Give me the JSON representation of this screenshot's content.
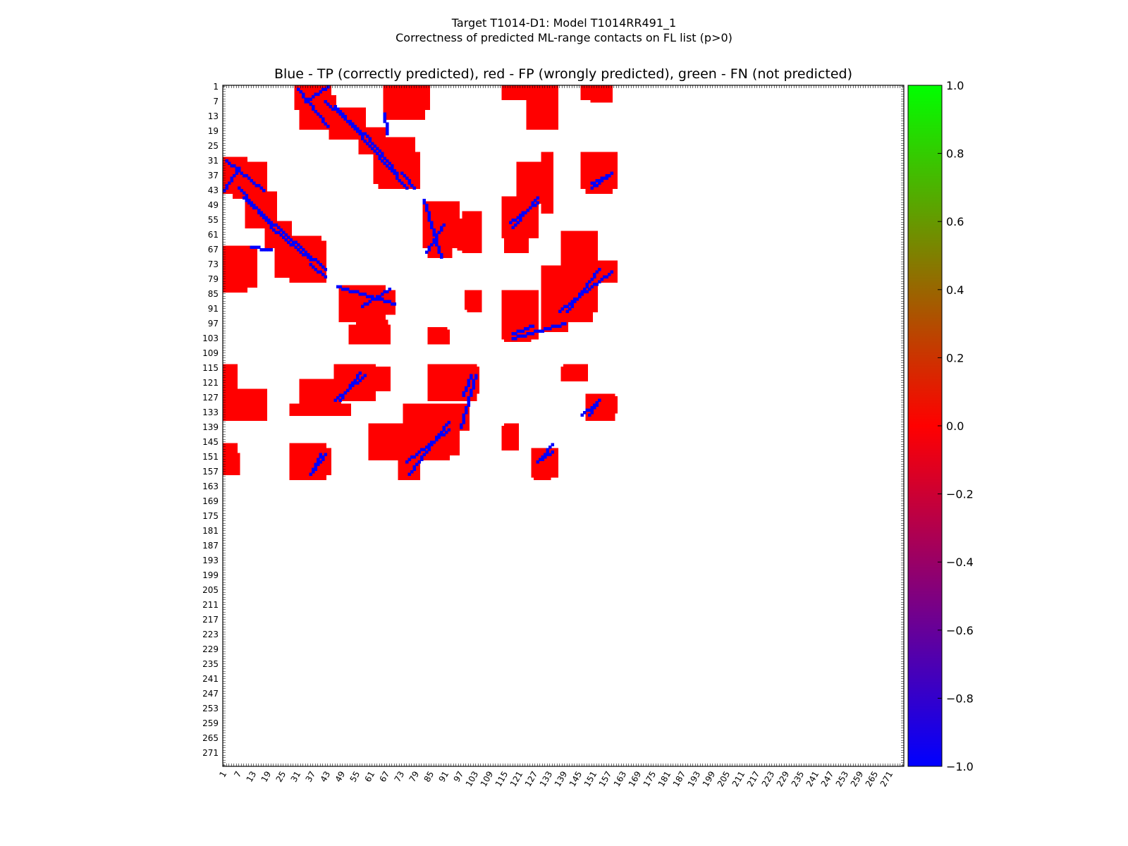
{
  "figure": {
    "title_line1": "Target T1014-D1: Model T1014RR491_1",
    "title_line2": "Correctness of predicted ML-range contacts on FL list (p>0)"
  },
  "chart_data": {
    "type": "heatmap",
    "title": "Blue - TP (correctly predicted), red - FP (wrongly predicted), green - FN (not predicted)",
    "n_residues": 276,
    "x_tick_labels": [
      "1",
      "7",
      "13",
      "19",
      "25",
      "31",
      "37",
      "43",
      "49",
      "55",
      "61",
      "67",
      "73",
      "79",
      "85",
      "91",
      "97",
      "103",
      "109",
      "115",
      "121",
      "127",
      "133",
      "139",
      "145",
      "151",
      "157",
      "163",
      "169",
      "175",
      "181",
      "187",
      "193",
      "199",
      "205",
      "211",
      "217",
      "223",
      "229",
      "235",
      "241",
      "247",
      "253",
      "259",
      "265",
      "271"
    ],
    "y_tick_labels": [
      "1",
      "7",
      "13",
      "19",
      "25",
      "31",
      "37",
      "43",
      "49",
      "55",
      "61",
      "67",
      "73",
      "79",
      "85",
      "91",
      "97",
      "103",
      "109",
      "115",
      "121",
      "127",
      "133",
      "139",
      "145",
      "151",
      "157",
      "163",
      "169",
      "175",
      "181",
      "187",
      "193",
      "199",
      "205",
      "211",
      "217",
      "223",
      "229",
      "235",
      "241",
      "247",
      "253",
      "259",
      "265",
      "271"
    ],
    "colorbar": {
      "min": -1.0,
      "max": 1.0,
      "tick_labels": [
        "1.0",
        "0.8",
        "0.6",
        "0.4",
        "0.2",
        "0.0",
        "−0.2",
        "−0.4",
        "−0.6",
        "−0.8",
        "−1.0"
      ],
      "colors": {
        "low": "#0000ff",
        "mid": "#ff0000",
        "high": "#00ff00"
      }
    },
    "legend": {
      "tp": "#0000ff",
      "fp": "#ff0000",
      "fn": "#00ff00"
    },
    "fp_regions": [
      {
        "i": [
          5,
          18
        ],
        "j": [
          32,
          46
        ]
      },
      {
        "i": [
          10,
          22
        ],
        "j": [
          44,
          58
        ]
      },
      {
        "i": [
          1,
          14
        ],
        "j": [
          66,
          82
        ]
      },
      {
        "i": [
          22,
          40
        ],
        "j": [
          62,
          78
        ]
      },
      {
        "i": [
          1,
          6
        ],
        "j": [
          114,
          122
        ]
      },
      {
        "i": [
          1,
          18
        ],
        "j": [
          124,
          136
        ]
      },
      {
        "i": [
          1,
          6
        ],
        "j": [
          146,
          158
        ]
      },
      {
        "i": [
          28,
          42
        ],
        "j": [
          146,
          160
        ]
      },
      {
        "i": [
          32,
          48
        ],
        "j": [
          120,
          134
        ]
      },
      {
        "i": [
          48,
          66
        ],
        "j": [
          82,
          96
        ]
      },
      {
        "i": [
          55,
          67
        ],
        "j": [
          96,
          105
        ]
      },
      {
        "i": [
          46,
          62
        ],
        "j": [
          114,
          128
        ]
      },
      {
        "i": [
          60,
          70
        ],
        "j": [
          140,
          150
        ]
      },
      {
        "i": [
          72,
          80
        ],
        "j": [
          150,
          160
        ]
      },
      {
        "i": [
          78,
          96
        ],
        "j": [
          136,
          150
        ]
      },
      {
        "i": [
          84,
          103
        ],
        "j": [
          114,
          128
        ]
      },
      {
        "i": [
          84,
          93
        ],
        "j": [
          50,
          70
        ]
      },
      {
        "i": [
          98,
          105
        ],
        "j": [
          52,
          68
        ]
      },
      {
        "i": [
          100,
          105
        ],
        "j": [
          84,
          92
        ]
      },
      {
        "i": [
          84,
          91
        ],
        "j": [
          99,
          104
        ]
      },
      {
        "i": [
          115,
          124
        ],
        "j": [
          48,
          68
        ]
      },
      {
        "i": [
          115,
          125
        ],
        "j": [
          84,
          104
        ]
      },
      {
        "i": [
          115,
          120
        ],
        "j": [
          138,
          148
        ]
      },
      {
        "i": [
          127,
          133
        ],
        "j": [
          148,
          160
        ]
      },
      {
        "i": [
          130,
          140
        ],
        "j": [
          74,
          100
        ]
      },
      {
        "i": [
          138,
          152
        ],
        "j": [
          60,
          92
        ]
      },
      {
        "i": [
          139,
          148
        ],
        "j": [
          114,
          120
        ]
      },
      {
        "i": [
          148,
          159
        ],
        "j": [
          126,
          136
        ]
      },
      {
        "i": [
          149,
          159
        ],
        "j": [
          72,
          80
        ]
      },
      {
        "i": [
          148,
          158
        ],
        "j": [
          32,
          44
        ]
      },
      {
        "i": [
          30,
          44
        ],
        "j": [
          1,
          10
        ]
      },
      {
        "i": [
          46,
          56
        ],
        "j": [
          10,
          20
        ]
      },
      {
        "i": [
          56,
          66
        ],
        "j": [
          18,
          28
        ]
      },
      {
        "i": [
          64,
          80
        ],
        "j": [
          28,
          42
        ]
      },
      {
        "i": [
          68,
          84
        ],
        "j": [
          1,
          10
        ]
      },
      {
        "i": [
          115,
          124
        ],
        "j": [
          1,
          6
        ]
      },
      {
        "i": [
          126,
          134
        ],
        "j": [
          1,
          12
        ]
      },
      {
        "i": [
          150,
          158
        ],
        "j": [
          1,
          7
        ]
      },
      {
        "i": [
          130,
          134
        ],
        "j": [
          28,
          52
        ]
      }
    ],
    "tp_diagonals": [
      {
        "from": [
          1,
          43
        ],
        "to": [
          7,
          34
        ]
      },
      {
        "from": [
          7,
          42
        ],
        "to": [
          22,
          60
        ]
      },
      {
        "from": [
          20,
          58
        ],
        "to": [
          36,
          71
        ]
      },
      {
        "from": [
          31,
          2
        ],
        "to": [
          43,
          17
        ]
      },
      {
        "from": [
          46,
          9
        ],
        "to": [
          75,
          42
        ]
      },
      {
        "from": [
          68,
          83
        ],
        "to": [
          57,
          90
        ]
      },
      {
        "from": [
          82,
          47
        ],
        "to": [
          89,
          70
        ]
      },
      {
        "from": [
          76,
          158
        ],
        "to": [
          92,
          137
        ]
      },
      {
        "from": [
          36,
          158
        ],
        "to": [
          42,
          150
        ]
      },
      {
        "from": [
          48,
          128
        ],
        "to": [
          56,
          117
        ]
      },
      {
        "from": [
          97,
          139
        ],
        "to": [
          103,
          118
        ]
      },
      {
        "from": [
          118,
          101
        ],
        "to": [
          126,
          98
        ]
      },
      {
        "from": [
          118,
          58
        ],
        "to": [
          128,
          46
        ]
      },
      {
        "from": [
          130,
          151
        ],
        "to": [
          134,
          146
        ]
      },
      {
        "from": [
          140,
          92
        ],
        "to": [
          153,
          75
        ]
      },
      {
        "from": [
          149,
          134
        ],
        "to": [
          153,
          128
        ]
      },
      {
        "from": [
          150,
          40
        ],
        "to": [
          158,
          36
        ]
      },
      {
        "from": [
          66,
          12
        ],
        "to": [
          67,
          20
        ]
      },
      {
        "from": [
          73,
          36
        ],
        "to": [
          78,
          42
        ]
      }
    ]
  }
}
